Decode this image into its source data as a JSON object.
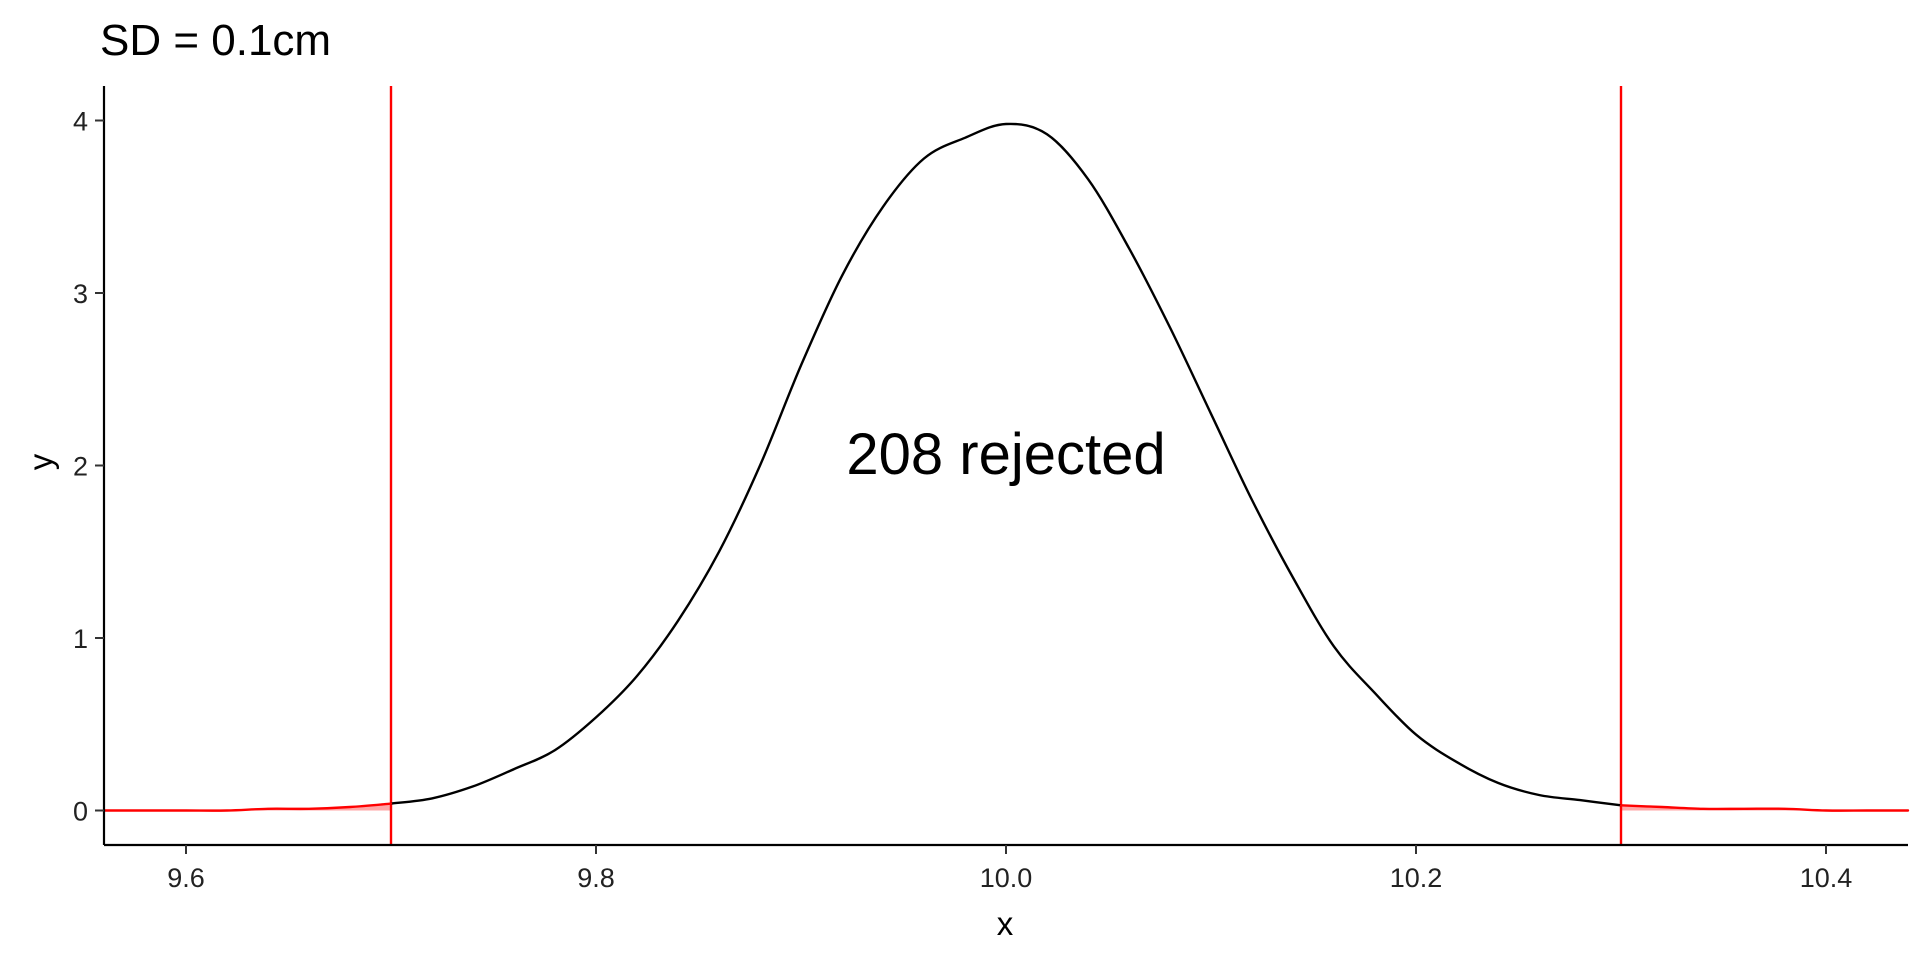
{
  "chart_data": {
    "type": "line",
    "title": "SD = 0.1cm",
    "xlabel": "x",
    "ylabel": "y",
    "xlim": [
      9.56,
      10.44
    ],
    "ylim": [
      -0.2,
      4.2
    ],
    "x_ticks": [
      9.6,
      9.8,
      10.0,
      10.2,
      10.4
    ],
    "x_tick_labels": [
      "9.6",
      "9.8",
      "10.0",
      "10.2",
      "10.4"
    ],
    "y_ticks": [
      0,
      1,
      2,
      3,
      4
    ],
    "y_tick_labels": [
      "0",
      "1",
      "2",
      "3",
      "4"
    ],
    "grid": false,
    "legend": "none",
    "series": [
      {
        "color": "#000000",
        "x": [
          9.7,
          9.72,
          9.74,
          9.76,
          9.78,
          9.8,
          9.82,
          9.84,
          9.86,
          9.88,
          9.9,
          9.92,
          9.94,
          9.96,
          9.98,
          10.0,
          10.02,
          10.04,
          10.06,
          10.08,
          10.1,
          10.12,
          10.14,
          10.16,
          10.18,
          10.2,
          10.22,
          10.24,
          10.26,
          10.28,
          10.3
        ],
        "y": [
          0.04,
          0.07,
          0.14,
          0.24,
          0.35,
          0.54,
          0.78,
          1.1,
          1.5,
          2.0,
          2.58,
          3.1,
          3.5,
          3.78,
          3.9,
          3.98,
          3.92,
          3.66,
          3.26,
          2.8,
          2.3,
          1.8,
          1.35,
          0.95,
          0.68,
          0.44,
          0.28,
          0.16,
          0.09,
          0.06,
          0.03
        ]
      },
      {
        "color": "#ff0000",
        "x": [
          9.56,
          9.58,
          9.6,
          9.62,
          9.64,
          9.66,
          9.68,
          9.7
        ],
        "y": [
          0.0,
          0.0,
          0.0,
          0.0,
          0.01,
          0.01,
          0.02,
          0.04
        ]
      },
      {
        "color": "#ff0000",
        "x": [
          10.3,
          10.32,
          10.34,
          10.36,
          10.38,
          10.4,
          10.42,
          10.44
        ],
        "y": [
          0.03,
          0.02,
          0.01,
          0.01,
          0.01,
          0.0,
          0.0,
          0.0
        ]
      }
    ],
    "vlines": [
      {
        "x": 9.7,
        "color": "#ff0000"
      },
      {
        "x": 10.3,
        "color": "#ff0000"
      }
    ],
    "annotations": [
      {
        "text": "208 rejected",
        "x": 10.0,
        "y": 1.95
      }
    ]
  }
}
